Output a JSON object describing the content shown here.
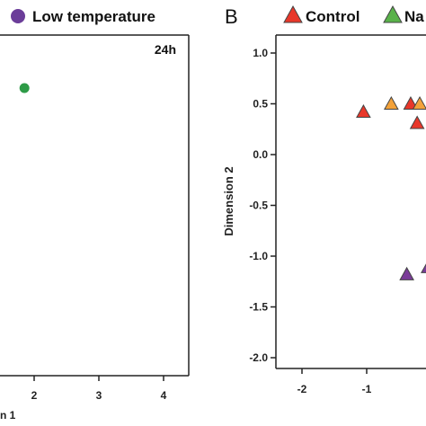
{
  "legend": {
    "low_temperature": "Low temperature",
    "control": "Control",
    "na_partial": "Na"
  },
  "panel_b_letter": "B",
  "chart_data": [
    {
      "type": "scatter",
      "panel": "A",
      "time_label": "24h",
      "xlabel_fragment": "n 1",
      "xticks": [
        "2",
        "3",
        "4"
      ],
      "x_tick_values": [
        2,
        3,
        4
      ],
      "points": [
        {
          "x": 1.85,
          "y": 0.6,
          "color": "#2e9b47",
          "marker": "circle"
        }
      ]
    },
    {
      "type": "scatter",
      "panel": "B",
      "ylabel": "Dimension 2",
      "xlim": [
        -2.4,
        0.95
      ],
      "ylim": [
        -2.1,
        1.1
      ],
      "xticks": [
        "-2",
        "-1"
      ],
      "x_tick_values": [
        -2,
        -1
      ],
      "yticks": [
        "1.0",
        "0.5",
        "0.0",
        "-0.5",
        "-1.0",
        "-1.5",
        "-2.0"
      ],
      "y_tick_values": [
        1.0,
        0.5,
        0.0,
        -0.5,
        -1.0,
        -1.5,
        -2.0
      ],
      "points": [
        {
          "x": -1.05,
          "y": 0.42,
          "color": "#e8372a",
          "marker": "triangle",
          "group": "Control"
        },
        {
          "x": -0.62,
          "y": 0.5,
          "color": "#f3a23a",
          "marker": "triangle"
        },
        {
          "x": -0.32,
          "y": 0.5,
          "color": "#e8372a",
          "marker": "triangle",
          "group": "Control"
        },
        {
          "x": -0.18,
          "y": 0.5,
          "color": "#f3a23a",
          "marker": "triangle"
        },
        {
          "x": -0.22,
          "y": 0.31,
          "color": "#e8372a",
          "marker": "triangle",
          "group": "Control"
        },
        {
          "x": -0.38,
          "y": -1.18,
          "color": "#7b3c99",
          "marker": "triangle"
        },
        {
          "x": -0.05,
          "y": -1.11,
          "color": "#7b3c99",
          "marker": "triangle"
        }
      ]
    }
  ],
  "colors": {
    "low_temperature": "#6b3d99",
    "control": "#e8372a",
    "na": "#59b24a"
  }
}
